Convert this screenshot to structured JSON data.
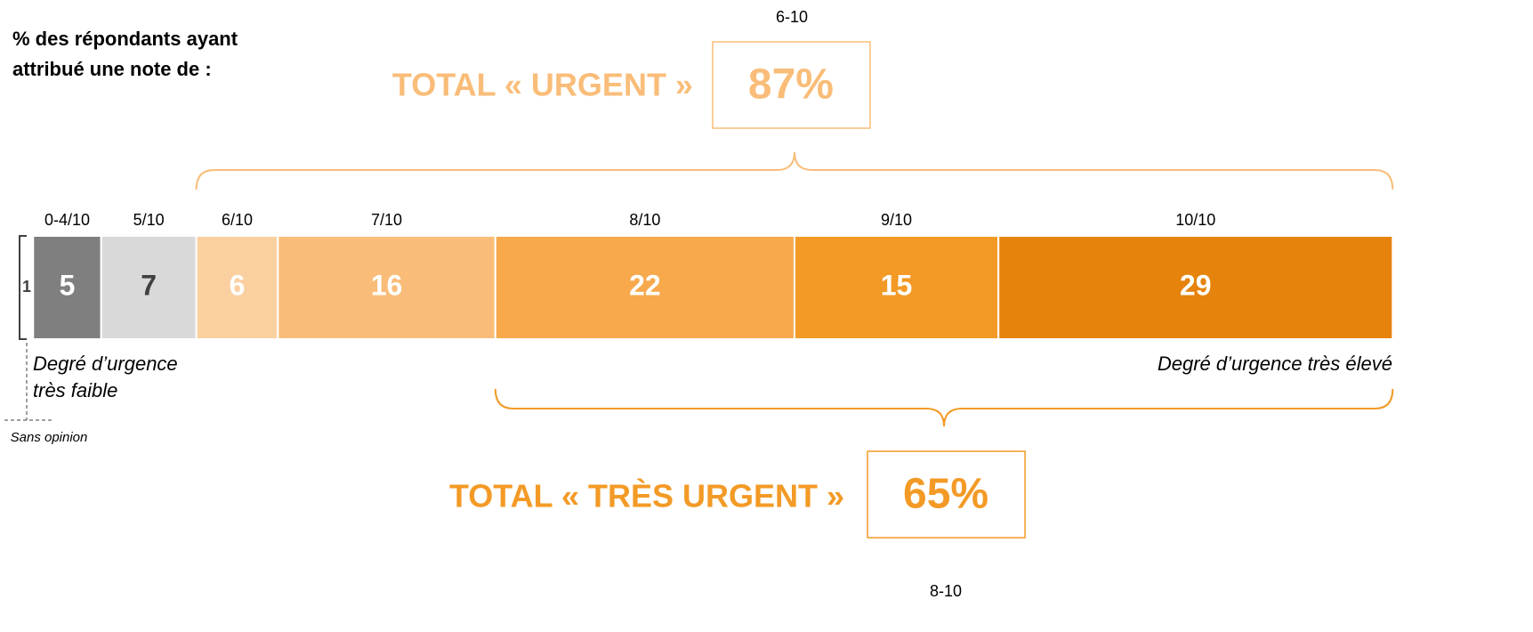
{
  "chart_data": {
    "type": "bar",
    "orientation": "horizontal",
    "stacked": true,
    "title": [
      "% des répondants ayant",
      "attribué une note de :"
    ],
    "series": [
      {
        "name": "Sans opinion",
        "color": "#404040",
        "label_color": "#404040",
        "values": [
          1
        ]
      },
      {
        "name": "0-4/10",
        "color": "#7f7f7f",
        "label_color": "#ffffff",
        "values": [
          5
        ]
      },
      {
        "name": "5/10",
        "color": "#d9d9d9",
        "label_color": "#404040",
        "values": [
          7
        ]
      },
      {
        "name": "6/10",
        "color": "#fbd0a0",
        "label_color": "#ffffff",
        "values": [
          6
        ]
      },
      {
        "name": "7/10",
        "color": "#f9bd79",
        "label_color": "#ffffff",
        "values": [
          16
        ]
      },
      {
        "name": "8/10",
        "color": "#f7a94c",
        "label_color": "#ffffff",
        "values": [
          22
        ]
      },
      {
        "name": "9/10",
        "color": "#f39a26",
        "label_color": "#ffffff",
        "values": [
          15
        ]
      },
      {
        "name": "10/10",
        "color": "#e6830c",
        "label_color": "#ffffff",
        "values": [
          29
        ]
      }
    ],
    "low_label": [
      "Degré d’urgence",
      "très faible"
    ],
    "high_label": "Degré d’urgence très élevé",
    "totals": [
      {
        "label": "TOTAL « URGENT »",
        "value": 87,
        "value_label": "87%",
        "range": "6-10",
        "color": "#f9bd79"
      },
      {
        "label": "TOTAL « TRÈS URGENT »",
        "value": 65,
        "value_label": "65%",
        "range": "8-10",
        "color": "#f39a26"
      }
    ]
  }
}
